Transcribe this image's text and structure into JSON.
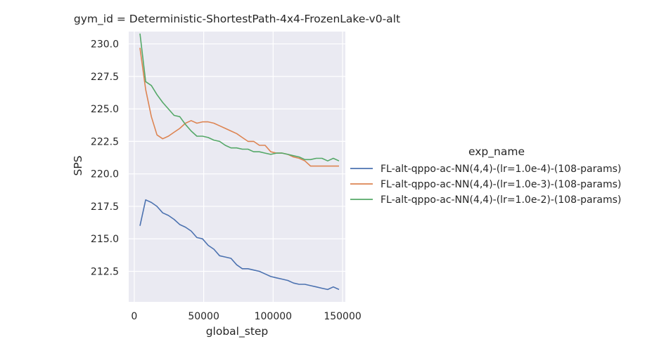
{
  "chart_data": {
    "type": "line",
    "title": "gym_id = Deterministic-ShortestPath-4x4-FrozenLake-v0-alt",
    "xlabel": "global_step",
    "ylabel": "SPS",
    "xlim": [
      -4000,
      152000
    ],
    "ylim": [
      210.15,
      230.95
    ],
    "x_ticks": [
      0,
      50000,
      100000,
      150000
    ],
    "x_tick_labels": [
      "0",
      "50000",
      "100000",
      "150000"
    ],
    "y_ticks": [
      212.5,
      215.0,
      217.5,
      220.0,
      222.5,
      225.0,
      227.5,
      230.0
    ],
    "y_tick_labels": [
      "212.5",
      "215.0",
      "217.5",
      "220.0",
      "222.5",
      "225.0",
      "227.5",
      "230.0"
    ],
    "grid": true,
    "legend_title": "exp_name",
    "legend_position": "right",
    "series": [
      {
        "name": "FL-alt-qppo-ac-NN(4,4)-(lr=1.0e-4)-(108-params)",
        "color": "#4c72b0",
        "x": [
          4096,
          8192,
          12288,
          16384,
          20480,
          24576,
          28672,
          32768,
          36864,
          40960,
          45056,
          49152,
          53248,
          57344,
          61440,
          65536,
          69632,
          73728,
          77824,
          81920,
          86016,
          90112,
          94208,
          98304,
          102400,
          106496,
          110592,
          114688,
          118784,
          122880,
          126976,
          131072,
          135168,
          139264,
          143360,
          147456
        ],
        "y": [
          216.0,
          218.0,
          217.8,
          217.5,
          217.0,
          216.8,
          216.5,
          216.1,
          215.9,
          215.6,
          215.1,
          215.0,
          214.5,
          214.2,
          213.7,
          213.6,
          213.5,
          213.0,
          212.7,
          212.7,
          212.6,
          212.5,
          212.3,
          212.1,
          212.0,
          211.9,
          211.8,
          211.6,
          211.5,
          211.5,
          211.4,
          211.3,
          211.2,
          211.1,
          211.3,
          211.1
        ]
      },
      {
        "name": "FL-alt-qppo-ac-NN(4,4)-(lr=1.0e-3)-(108-params)",
        "color": "#dd8452",
        "x": [
          4096,
          8192,
          12288,
          16384,
          20480,
          24576,
          28672,
          32768,
          36864,
          40960,
          45056,
          49152,
          53248,
          57344,
          61440,
          65536,
          69632,
          73728,
          77824,
          81920,
          86016,
          90112,
          94208,
          98304,
          102400,
          106496,
          110592,
          114688,
          118784,
          122880,
          126976,
          131072,
          135168,
          139264,
          143360,
          147456
        ],
        "y": [
          229.7,
          226.5,
          224.4,
          223.0,
          222.7,
          222.9,
          223.2,
          223.5,
          223.9,
          224.1,
          223.9,
          224.0,
          224.0,
          223.9,
          223.7,
          223.5,
          223.3,
          223.1,
          222.8,
          222.5,
          222.5,
          222.2,
          222.2,
          221.7,
          221.6,
          221.6,
          221.5,
          221.3,
          221.2,
          221.0,
          220.6,
          220.6,
          220.6,
          220.6,
          220.6,
          220.6
        ]
      },
      {
        "name": "FL-alt-qppo-ac-NN(4,4)-(lr=1.0e-2)-(108-params)",
        "color": "#55a868",
        "x": [
          4096,
          8192,
          12288,
          16384,
          20480,
          24576,
          28672,
          32768,
          36864,
          40960,
          45056,
          49152,
          53248,
          57344,
          61440,
          65536,
          69632,
          73728,
          77824,
          81920,
          86016,
          90112,
          94208,
          98304,
          102400,
          106496,
          110592,
          114688,
          118784,
          122880,
          126976,
          131072,
          135168,
          139264,
          143360,
          147456
        ],
        "y": [
          230.8,
          227.1,
          226.8,
          226.1,
          225.5,
          225.0,
          224.5,
          224.4,
          223.8,
          223.3,
          222.9,
          222.9,
          222.8,
          222.6,
          222.5,
          222.2,
          222.0,
          222.0,
          221.9,
          221.9,
          221.7,
          221.7,
          221.6,
          221.5,
          221.6,
          221.6,
          221.5,
          221.4,
          221.3,
          221.1,
          221.1,
          221.2,
          221.2,
          221.0,
          221.2,
          221.0
        ]
      }
    ]
  }
}
